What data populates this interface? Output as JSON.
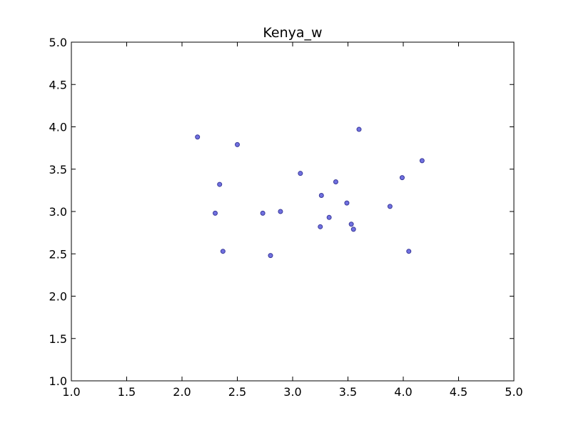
{
  "chart_data": {
    "type": "scatter",
    "title": "Kenya_w",
    "xlabel": "",
    "ylabel": "",
    "xlim": [
      1.0,
      5.0
    ],
    "ylim": [
      1.0,
      5.0
    ],
    "x_ticks": [
      1.0,
      1.5,
      2.0,
      2.5,
      3.0,
      3.5,
      4.0,
      4.5,
      5.0
    ],
    "y_ticks": [
      1.0,
      1.5,
      2.0,
      2.5,
      3.0,
      3.5,
      4.0,
      4.5,
      5.0
    ],
    "x_tick_labels": [
      "1.0",
      "1.5",
      "2.0",
      "2.5",
      "3.0",
      "3.5",
      "4.0",
      "4.5",
      "5.0"
    ],
    "y_tick_labels": [
      "1.0",
      "1.5",
      "2.0",
      "2.5",
      "3.0",
      "3.5",
      "4.0",
      "4.5",
      "5.0"
    ],
    "grid": false,
    "marker_color": "#7070e0",
    "marker_edge_color": "#3a3a9a",
    "series": [
      {
        "points": [
          {
            "x": 2.14,
            "y": 3.88
          },
          {
            "x": 2.5,
            "y": 3.79
          },
          {
            "x": 3.6,
            "y": 3.97
          },
          {
            "x": 4.17,
            "y": 3.6
          },
          {
            "x": 3.07,
            "y": 3.45
          },
          {
            "x": 3.99,
            "y": 3.4
          },
          {
            "x": 2.34,
            "y": 3.32
          },
          {
            "x": 3.39,
            "y": 3.35
          },
          {
            "x": 3.26,
            "y": 3.19
          },
          {
            "x": 3.49,
            "y": 3.1
          },
          {
            "x": 3.88,
            "y": 3.06
          },
          {
            "x": 2.3,
            "y": 2.98
          },
          {
            "x": 2.73,
            "y": 2.98
          },
          {
            "x": 2.89,
            "y": 3.0
          },
          {
            "x": 3.33,
            "y": 2.93
          },
          {
            "x": 3.25,
            "y": 2.82
          },
          {
            "x": 3.53,
            "y": 2.85
          },
          {
            "x": 3.55,
            "y": 2.79
          },
          {
            "x": 2.37,
            "y": 2.53
          },
          {
            "x": 2.8,
            "y": 2.48
          },
          {
            "x": 4.05,
            "y": 2.53
          }
        ]
      }
    ]
  }
}
